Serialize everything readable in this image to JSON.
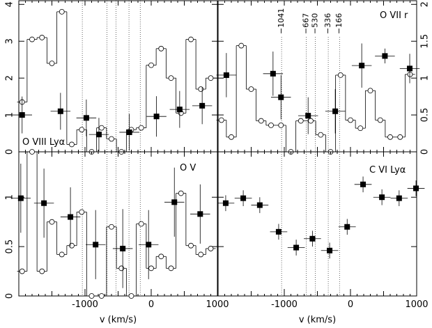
{
  "chart_data": [
    {
      "type": "step",
      "title": "O VIII Lyα",
      "xlim": [
        -2000,
        1000
      ],
      "ylim": [
        0,
        4.1
      ],
      "yticks": [
        0,
        1,
        2,
        3,
        4
      ],
      "ytick_side": "left",
      "x": [
        -1950,
        -1800,
        -1650,
        -1500,
        -1350,
        -1200,
        -1050,
        -900,
        -750,
        -600,
        -450,
        -300,
        -150,
        0,
        150,
        300,
        450,
        600,
        750,
        900
      ],
      "values": [
        1.35,
        3.05,
        3.1,
        2.4,
        3.8,
        0.2,
        0.6,
        0,
        0.65,
        0.35,
        0,
        0.6,
        0.65,
        2.35,
        2.8,
        2.0,
        1.05,
        3.05,
        1.7,
        2.0
      ],
      "points_x": [
        -1950,
        -1370,
        -980,
        -790,
        -330,
        80,
        430,
        770
      ],
      "points": [
        1.0,
        1.1,
        0.92,
        0.47,
        0.53,
        0.96,
        1.15,
        1.25
      ],
      "points_yerr": [
        0.5,
        0.5,
        0.5,
        0.45,
        0.5,
        0.55,
        0.5,
        0.5
      ],
      "points_xerr": 150,
      "vlines": [
        -1041,
        -667,
        -530,
        -336,
        -166
      ]
    },
    {
      "type": "step",
      "title": "O VII r",
      "xlim": [
        -2000,
        1000
      ],
      "ylim": [
        0,
        2.05
      ],
      "yticks": [
        0,
        0.5,
        1,
        1.5,
        2
      ],
      "ytick_side": "right",
      "x": [
        -1950,
        -1800,
        -1650,
        -1500,
        -1350,
        -1200,
        -1050,
        -900,
        -750,
        -600,
        -450,
        -300,
        -150,
        0,
        150,
        300,
        450,
        600,
        750,
        900
      ],
      "values": [
        0.43,
        0.2,
        1.44,
        0.85,
        0.42,
        0.36,
        0.36,
        0,
        0.42,
        0.42,
        0.23,
        0,
        1.04,
        0.43,
        0.32,
        0.83,
        0.43,
        0.2,
        0.2,
        1.05
      ],
      "points_x": [
        -1875,
        -1170,
        -1050,
        -640,
        -230,
        170,
        520,
        895
      ],
      "points": [
        1.04,
        1.06,
        0.74,
        0.49,
        0.55,
        1.17,
        1.3,
        1.13
      ],
      "points_yerr": [
        0.3,
        0.3,
        0.3,
        0.25,
        0.3,
        0.3,
        0.1,
        0.2
      ],
      "points_xerr": 150,
      "vlines": [
        {
          "value": -1041,
          "label": "−1041"
        },
        {
          "value": -667,
          "label": "−667"
        },
        {
          "value": -530,
          "label": "−530"
        },
        {
          "value": -336,
          "label": "−336"
        },
        {
          "value": -166,
          "label": "−166"
        }
      ]
    },
    {
      "type": "step",
      "title": "O V",
      "xlim": [
        -2000,
        1000
      ],
      "ylim": [
        0,
        1.46
      ],
      "yticks": [
        0,
        0.5,
        1
      ],
      "ytick_side": "left",
      "xticks": [
        -1000,
        0,
        1000
      ],
      "xlabel": "v (km/s)",
      "x": [
        -1950,
        -1800,
        -1650,
        -1500,
        -1350,
        -1200,
        -1050,
        -900,
        -750,
        -600,
        -450,
        -300,
        -150,
        0,
        150,
        300,
        450,
        600,
        750,
        900
      ],
      "values": [
        0.25,
        1.46,
        0.25,
        0.75,
        0.42,
        0.51,
        0.85,
        0,
        0,
        0.7,
        0.28,
        0,
        0.73,
        0.28,
        0.4,
        0.28,
        1.04,
        0.51,
        0.42,
        0.48
      ],
      "points_x": [
        -1970,
        -1620,
        -1220,
        -840,
        -430,
        -40,
        350,
        740
      ],
      "points": [
        0.99,
        0.94,
        0.8,
        0.52,
        0.48,
        0.52,
        0.95,
        0.83
      ],
      "points_yerr": [
        0.35,
        0.35,
        0.3,
        0.35,
        0.4,
        0.35,
        0.35,
        0.3
      ],
      "points_xerr": 150,
      "vlines": [
        -1041,
        -667,
        -530,
        -336,
        -166
      ]
    },
    {
      "type": "step",
      "title": "C VI Lyα",
      "xlim": [
        -2000,
        1000
      ],
      "ylim": [
        0,
        1.46
      ],
      "yticks": [
        0,
        0.5,
        1
      ],
      "ytick_side": "none",
      "xticks": [
        -1000,
        0,
        1000
      ],
      "xlabel": "v (km/s)",
      "points_x": [
        -1885,
        -1620,
        -1370,
        -1085,
        -820,
        -575,
        -315,
        -50,
        190,
        475,
        735,
        990
      ],
      "points": [
        0.94,
        0.99,
        0.92,
        0.65,
        0.49,
        0.58,
        0.46,
        0.7,
        1.13,
        1.0,
        0.99,
        1.09
      ],
      "points_yerr": [
        0.08,
        0.08,
        0.08,
        0.08,
        0.08,
        0.08,
        0.08,
        0.08,
        0.08,
        0.08,
        0.08,
        0.08
      ],
      "points_xerr": 130,
      "vlines": [
        -1041,
        -667,
        -530,
        -336,
        -166
      ]
    }
  ]
}
